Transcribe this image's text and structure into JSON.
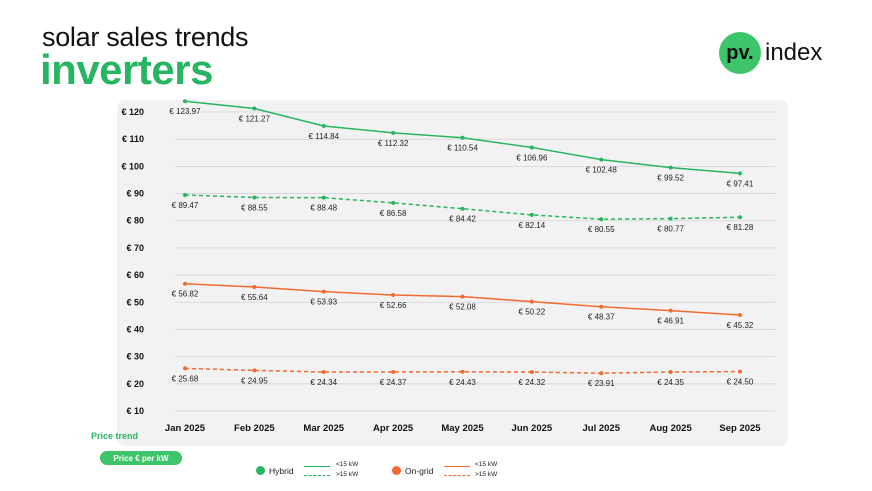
{
  "header": {
    "title_line1": "solar sales trends",
    "title_line2": "inverters"
  },
  "logo": {
    "badge": "pv.",
    "text": "index"
  },
  "colors": {
    "hybrid": "#27b561",
    "ongrid": "#f26a2e",
    "panel": "#f2f2f2",
    "grid": "#d4d4d4"
  },
  "labels": {
    "price_trend": "Price trend",
    "unit_pill": "Price € per kW"
  },
  "legend": [
    {
      "name": "Hybrid",
      "color": "#27b561",
      "solid_label": "<15 kW",
      "dashed_label": ">15 kW"
    },
    {
      "name": "On-grid",
      "color": "#f26a2e",
      "solid_label": "<15 kW",
      "dashed_label": ">15 kW"
    }
  ],
  "chart_data": {
    "type": "line",
    "ylim": [
      10,
      120
    ],
    "ytick_values": [
      10,
      20,
      30,
      40,
      50,
      60,
      70,
      80,
      90,
      100,
      110,
      120
    ],
    "ytick_labels": [
      "€ 10",
      "€ 20",
      "€ 30",
      "€ 40",
      "€ 50",
      "€ 60",
      "€ 70",
      "€ 80",
      "€ 90",
      "€ 100",
      "€ 110",
      "€ 120"
    ],
    "categories": [
      "Jan 2025",
      "Feb 2025",
      "Mar 2025",
      "Apr 2025",
      "May 2025",
      "Jun 2025",
      "Jul 2025",
      "Aug 2025",
      "Sep 2025"
    ],
    "grid": true,
    "legend_position": "bottom",
    "series": [
      {
        "name": "Hybrid <15 kW",
        "color": "#27b561",
        "dashed": false,
        "values": [
          123.97,
          121.27,
          114.84,
          112.32,
          110.54,
          106.96,
          102.48,
          99.52,
          97.41
        ],
        "labels": [
          "€ 123.97",
          "€ 121.27",
          "€ 114.84",
          "€ 112.32",
          "€ 110.54",
          "€ 106.96",
          "€ 102.48",
          "€ 99.52",
          "€ 97.41"
        ]
      },
      {
        "name": "Hybrid >15 kW",
        "color": "#27b561",
        "dashed": true,
        "values": [
          89.47,
          88.55,
          88.48,
          86.58,
          84.42,
          82.14,
          80.55,
          80.77,
          81.28
        ],
        "labels": [
          "€ 89.47",
          "€ 88.55",
          "€ 88.48",
          "€ 86.58",
          "€ 84.42",
          "€ 82.14",
          "€ 80.55",
          "€ 80.77",
          "€ 81.28"
        ]
      },
      {
        "name": "On-grid <15 kW",
        "color": "#f26a2e",
        "dashed": false,
        "values": [
          56.82,
          55.64,
          53.93,
          52.66,
          52.08,
          50.22,
          48.37,
          46.91,
          45.32
        ],
        "labels": [
          "€ 56.82",
          "€ 55.64",
          "€ 53.93",
          "€ 52.66",
          "€ 52.08",
          "€ 50.22",
          "€ 48.37",
          "€ 46.91",
          "€ 45.32"
        ]
      },
      {
        "name": "On-grid >15 kW",
        "color": "#f26a2e",
        "dashed": true,
        "values": [
          25.68,
          24.95,
          24.34,
          24.37,
          24.43,
          24.32,
          23.91,
          24.35,
          24.5
        ],
        "labels": [
          "€ 25.68",
          "€ 24.95",
          "€ 24.34",
          "€ 24.37",
          "€ 24.43",
          "€ 24.32",
          "€ 23.91",
          "€ 24.35",
          "€ 24.50"
        ]
      }
    ]
  }
}
